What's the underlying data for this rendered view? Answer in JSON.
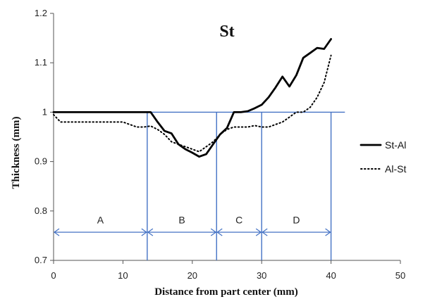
{
  "chart_data": {
    "type": "line",
    "title": "St",
    "xlabel": "Distance from part center (mm)",
    "ylabel": "Thickness (mm)",
    "xlim": [
      0,
      50
    ],
    "ylim": [
      0.7,
      1.2
    ],
    "xticks": [
      0,
      10,
      20,
      30,
      40,
      50
    ],
    "yticks": [
      0.7,
      0.8,
      0.9,
      1.0,
      1.1,
      1.2
    ],
    "xtick_labels": [
      "0",
      "10",
      "20",
      "30",
      "40",
      "50"
    ],
    "ytick_labels": [
      "0.7",
      "0.8",
      "0.9",
      "1",
      "1.1",
      "1.2"
    ],
    "grid": false,
    "legend_position": "right",
    "series": [
      {
        "name": "St-Al",
        "style": "solid",
        "color": "#000000",
        "x": [
          0,
          5,
          10,
          13.5,
          14,
          15,
          16,
          17,
          18,
          19,
          20,
          21,
          22,
          23,
          24,
          25,
          26,
          27,
          28,
          29,
          30,
          31,
          32,
          33,
          34,
          35,
          36,
          37,
          38,
          39,
          40
        ],
        "y": [
          1.0,
          1.0,
          1.0,
          1.0,
          1.0,
          0.98,
          0.962,
          0.957,
          0.935,
          0.925,
          0.918,
          0.91,
          0.915,
          0.935,
          0.955,
          0.968,
          1.0,
          1.0,
          1.002,
          1.008,
          1.015,
          1.03,
          1.05,
          1.072,
          1.052,
          1.075,
          1.11,
          1.12,
          1.13,
          1.128,
          1.148
        ]
      },
      {
        "name": "Al-St",
        "style": "dotted",
        "color": "#000000",
        "x": [
          0,
          1,
          5,
          10,
          12,
          13,
          14,
          15,
          16,
          17,
          18,
          19,
          20,
          21,
          22,
          23,
          24,
          25,
          26,
          27,
          28,
          29,
          30,
          31,
          32,
          33,
          34,
          35,
          36,
          37,
          38,
          39,
          40
        ],
        "y": [
          0.995,
          0.98,
          0.98,
          0.98,
          0.97,
          0.97,
          0.972,
          0.965,
          0.955,
          0.94,
          0.935,
          0.93,
          0.925,
          0.92,
          0.93,
          0.94,
          0.955,
          0.965,
          0.97,
          0.97,
          0.97,
          0.973,
          0.97,
          0.97,
          0.975,
          0.98,
          0.99,
          1.0,
          1.0,
          1.01,
          1.03,
          1.06,
          1.115
        ]
      }
    ],
    "reference_line": {
      "y": 1.0,
      "x_from": 0,
      "x_to": 42,
      "color": "#4472c4"
    },
    "zone_boundaries": [
      13.5,
      23.5,
      30,
      40
    ],
    "zones": [
      {
        "label": "A",
        "x_from": 0,
        "x_to": 13.5
      },
      {
        "label": "B",
        "x_from": 13.5,
        "x_to": 23.5
      },
      {
        "label": "C",
        "x_from": 23.5,
        "x_to": 30
      },
      {
        "label": "D",
        "x_from": 30,
        "x_to": 40
      }
    ],
    "zone_arrow_y": 0.757,
    "zone_label_y": 0.775,
    "zone_color": "#4472c4"
  }
}
